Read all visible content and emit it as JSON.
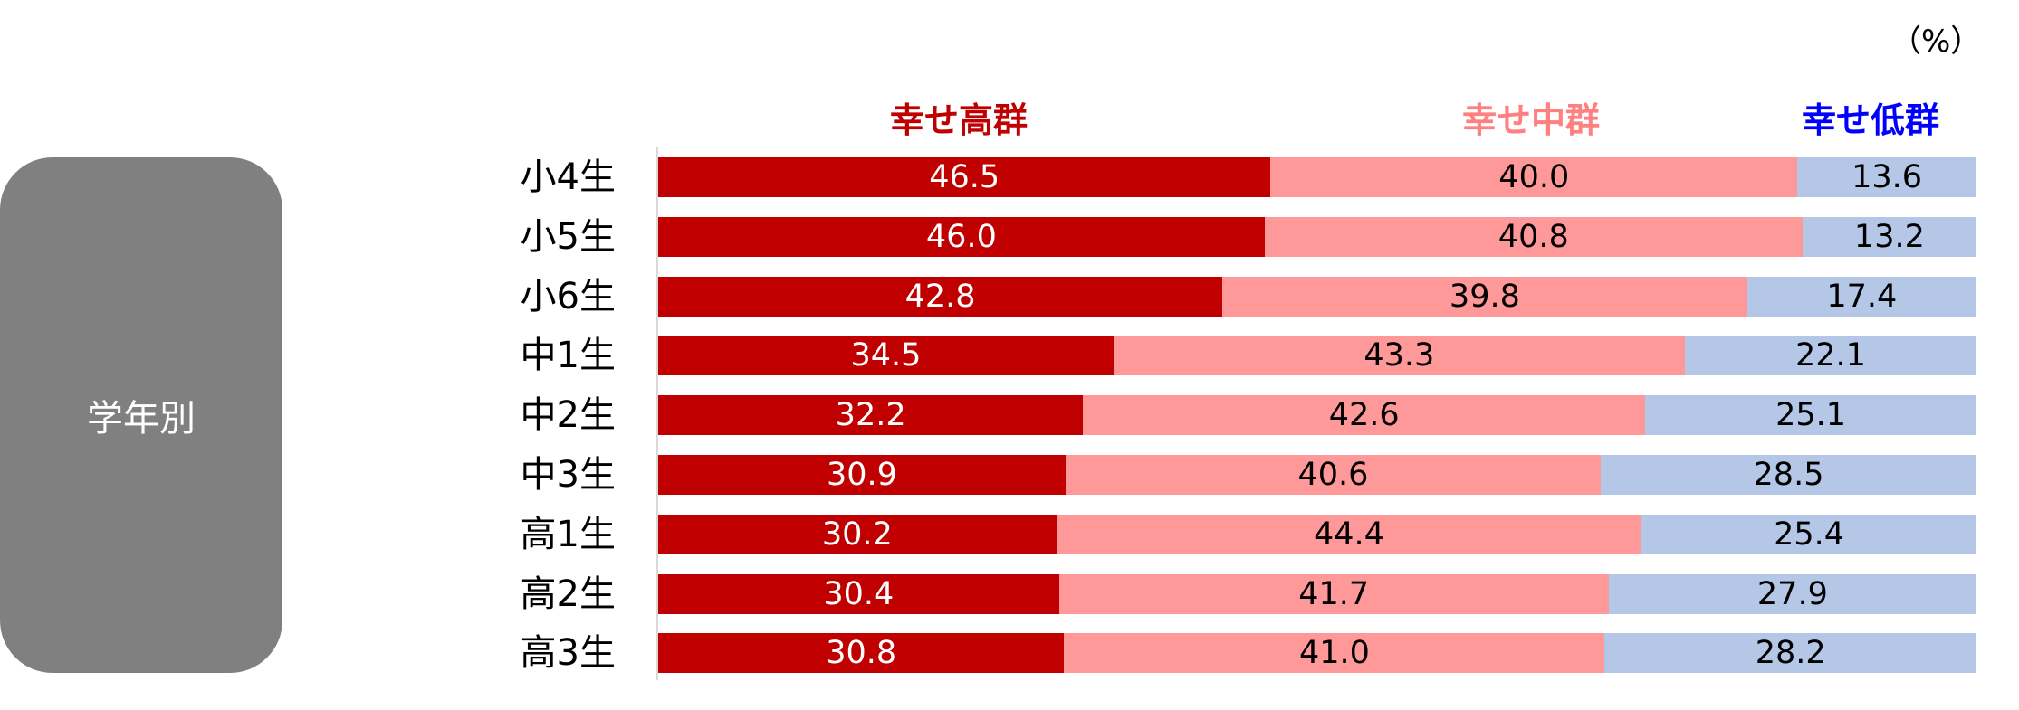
{
  "group_label": "学年別",
  "unit": "（%）",
  "colors": {
    "high": "#c00000",
    "mid": "#ff9999",
    "low": "#b4c7e7",
    "mid_legend": "#ff8080",
    "low_legend": "#0000ff"
  },
  "chart_data": {
    "type": "bar",
    "orientation": "horizontal",
    "stacked": "percent",
    "categories": [
      "小4生",
      "小5生",
      "小6生",
      "中1生",
      "中2生",
      "中3生",
      "高1生",
      "高2生",
      "高3生"
    ],
    "series": [
      {
        "name": "幸せ高群",
        "values": [
          46.5,
          46.0,
          42.8,
          34.5,
          32.2,
          30.9,
          30.2,
          30.4,
          30.8
        ]
      },
      {
        "name": "幸せ中群",
        "values": [
          40.0,
          40.8,
          39.8,
          43.3,
          42.6,
          40.6,
          44.4,
          41.7,
          41.0
        ]
      },
      {
        "name": "幸せ低群",
        "values": [
          13.6,
          13.2,
          17.4,
          22.1,
          25.1,
          28.5,
          25.4,
          27.9,
          28.2
        ]
      }
    ],
    "xlim": [
      0,
      100
    ],
    "grid": false,
    "legend": "top"
  }
}
